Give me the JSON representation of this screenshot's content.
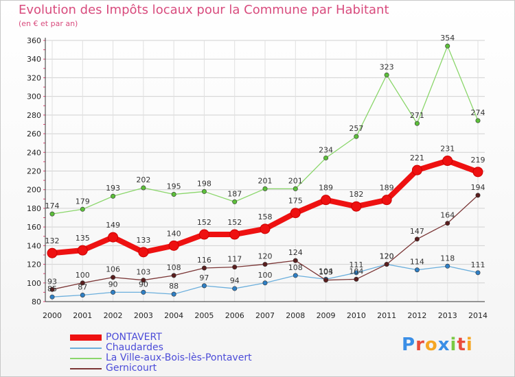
{
  "header": {
    "title": "Evolution des Impôts locaux pour la Commune par Habitant",
    "subtitle": "(en € et par an)"
  },
  "logo": {
    "text": "Proxiti",
    "letters": [
      "P",
      "r",
      "o",
      "x",
      "i",
      "t",
      "i"
    ],
    "colors": [
      "#3a8ee6",
      "#e84c3d",
      "#f5a623",
      "#3a8ee6",
      "#7ac943",
      "#e84c3d",
      "#f5a623"
    ]
  },
  "chart_data": {
    "type": "line",
    "title": "Evolution des Impôts locaux pour la Commune par Habitant",
    "subtitle": "(en € et par an)",
    "x": [
      "2000",
      "2001",
      "2002",
      "2003",
      "2004",
      "2005",
      "2006",
      "2007",
      "2008",
      "2009",
      "2010",
      "2011",
      "2012",
      "2013",
      "2014"
    ],
    "ylim": [
      80,
      360
    ],
    "yticks": [
      80,
      100,
      120,
      140,
      160,
      180,
      200,
      220,
      240,
      260,
      280,
      300,
      320,
      340,
      360
    ],
    "grid": true,
    "legend_position": "bottom-left",
    "series": [
      {
        "name": "PONTAVERT",
        "color": "#ee1111",
        "marker": "#ee1111",
        "width": 8,
        "values": [
          132,
          135,
          149,
          133,
          140,
          152,
          152,
          158,
          175,
          189,
          182,
          189,
          221,
          231,
          219
        ],
        "labels": [
          "132",
          "135",
          "149",
          "133",
          "140",
          "152",
          "152",
          "158",
          "175",
          "189",
          "182",
          "189",
          "221",
          "231",
          "219"
        ]
      },
      {
        "name": "Chaudardes",
        "color": "#6aaedc",
        "marker": "#2f7fc4",
        "width": 1.3,
        "values": [
          85,
          87,
          90,
          90,
          88,
          97,
          94,
          100,
          108,
          104,
          111,
          120,
          114,
          118,
          111
        ],
        "labels": [
          "85",
          "87",
          "90",
          "90",
          "88",
          "97",
          "94",
          "100",
          "108",
          "104",
          "111",
          "120",
          "114",
          "118",
          "111"
        ]
      },
      {
        "name": "La Ville-aux-Bois-lès-Pontavert",
        "color": "#8ad66a",
        "marker": "#5cbf3a",
        "width": 1.3,
        "values": [
          174,
          179,
          193,
          202,
          195,
          198,
          187,
          201,
          201,
          234,
          257,
          323,
          271,
          354,
          274
        ],
        "labels": [
          "174",
          "179",
          "193",
          "202",
          "195",
          "198",
          "187",
          "201",
          "201",
          "234",
          "257",
          "323",
          "271",
          "354",
          "274"
        ]
      },
      {
        "name": "Gernicourt",
        "color": "#7a3535",
        "marker": "#5a1e1e",
        "width": 1.3,
        "values": [
          93,
          100,
          106,
          103,
          108,
          116,
          117,
          120,
          124,
          103,
          104,
          120,
          147,
          164,
          194
        ],
        "labels": [
          "93",
          "100",
          "106",
          "103",
          "108",
          "116",
          "117",
          "120",
          "124",
          "103",
          "104",
          "120",
          "147",
          "164",
          "194"
        ]
      }
    ]
  }
}
